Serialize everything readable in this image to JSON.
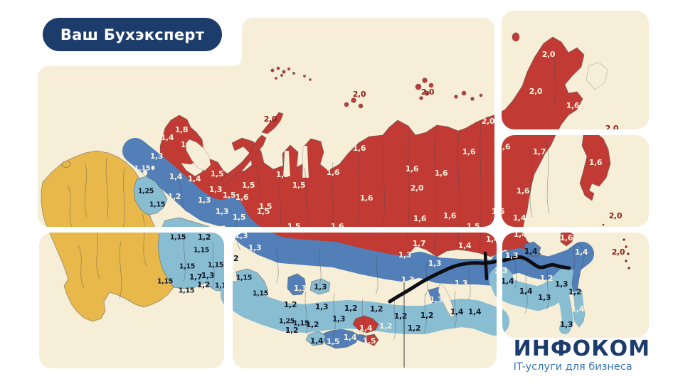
{
  "badge": {
    "label": "Ваш Бухэксперт"
  },
  "logo": {
    "title": "ИНФОКОМ",
    "subtitle": "IT-услуги для бизнеса"
  },
  "colors": {
    "bg": "#ffffff",
    "beige": "#f6eed6",
    "yellow": "#e8b84b",
    "lblue": "#89bdd2",
    "mblue": "#527fb8",
    "red": "#c23a34",
    "ink-light": "#f7efdc",
    "ink-dark": "#141c2b",
    "ink-red": "#8e211d",
    "navy": "#1c3c6b",
    "logo-blue": "#3577b5",
    "line": "#0d0d12"
  },
  "map": {
    "description": "Map of Russia with regional (district) salary coefficients by zone",
    "labels": [
      [
        380,
        167,
        "2,0",
        "r"
      ],
      [
        505,
        132,
        "2,0",
        "r"
      ],
      [
        601,
        129,
        "2,0",
        "r"
      ],
      [
        860,
        180,
        "2,0",
        "r"
      ],
      [
        865,
        303,
        "2,0",
        "r"
      ],
      [
        869,
        354,
        "2,0",
        "r"
      ],
      [
        255,
        182,
        "1,8",
        "w"
      ],
      [
        235,
        193,
        "1,4",
        "w"
      ],
      [
        263,
        203,
        "1,7",
        "w"
      ],
      [
        220,
        219,
        "1,3",
        "w"
      ],
      [
        200,
        236,
        "1,15",
        "w"
      ],
      [
        247,
        248,
        "1,4",
        "w"
      ],
      [
        273,
        251,
        "1,4",
        "w"
      ],
      [
        305,
        244,
        "1,5",
        "w"
      ],
      [
        245,
        276,
        "1,2",
        "w"
      ],
      [
        287,
        281,
        "1,3",
        "w"
      ],
      [
        303,
        266,
        "1,3",
        "w"
      ],
      [
        322,
        274,
        "1,5",
        "w"
      ],
      [
        340,
        277,
        "1,6",
        "w"
      ],
      [
        349,
        260,
        "1,5",
        "w"
      ],
      [
        370,
        297,
        "1,5",
        "w"
      ],
      [
        312,
        297,
        "1,3",
        "w"
      ],
      [
        336,
        305,
        "1,5",
        "w"
      ],
      [
        339,
        331,
        "1,3",
        "w"
      ],
      [
        358,
        348,
        "1,3",
        "w"
      ],
      [
        397,
        245,
        "1,5",
        "w"
      ],
      [
        420,
        260,
        "1,5",
        "w"
      ],
      [
        373,
        290,
        "1,5",
        "w"
      ],
      [
        413,
        318,
        "1,5",
        "w"
      ],
      [
        468,
        242,
        "1,6",
        "w"
      ],
      [
        474,
        318,
        "1,6",
        "w"
      ],
      [
        505,
        208,
        "1,6",
        "w"
      ],
      [
        515,
        278,
        "1,6",
        "w"
      ],
      [
        579,
        237,
        "1,6",
        "w"
      ],
      [
        586,
        264,
        "2,0",
        "w"
      ],
      [
        590,
        307,
        "1,6",
        "w"
      ],
      [
        620,
        243,
        "1,6",
        "w"
      ],
      [
        632,
        303,
        "1,6",
        "w"
      ],
      [
        659,
        213,
        "1,6",
        "w"
      ],
      [
        665,
        318,
        "1,5",
        "w"
      ],
      [
        686,
        170,
        "2,0",
        "w"
      ],
      [
        589,
        342,
        "1,7",
        "w"
      ],
      [
        569,
        358,
        "1,3",
        "w"
      ],
      [
        611,
        370,
        "1,3",
        "w"
      ],
      [
        573,
        393,
        "1,3",
        "w"
      ],
      [
        648,
        398,
        "1,3",
        "w"
      ],
      [
        613,
        421,
        "1,3",
        "w"
      ],
      [
        422,
        405,
        "1,3",
        "w"
      ],
      [
        653,
        345,
        "1,4",
        "w"
      ],
      [
        692,
        336,
        "1,4",
        "w"
      ],
      [
        708,
        206,
        "1,6",
        "w"
      ],
      [
        758,
        213,
        "1,7",
        "w"
      ],
      [
        771,
        76,
        "2,0",
        "w"
      ],
      [
        753,
        128,
        "2,0",
        "w"
      ],
      [
        805,
        148,
        "1,6",
        "w"
      ],
      [
        837,
        228,
        "1,6",
        "w"
      ],
      [
        735,
        268,
        "1,6",
        "w"
      ],
      [
        730,
        306,
        "1,4",
        "w"
      ],
      [
        700,
        297,
        "1,5",
        "w"
      ],
      [
        731,
        329,
        "1,4",
        "w"
      ],
      [
        719,
        359,
        "1,3",
        "w"
      ],
      [
        704,
        380,
        "1,3",
        "w"
      ],
      [
        768,
        391,
        "1,2",
        "w"
      ],
      [
        796,
        334,
        "1,6",
        "w"
      ],
      [
        817,
        354,
        "1,4",
        "w"
      ],
      [
        812,
        434,
        "1,4",
        "w"
      ],
      [
        468,
        480,
        "1,5",
        "w"
      ],
      [
        492,
        474,
        "1,4",
        "w"
      ],
      [
        542,
        458,
        "1,2",
        "w"
      ],
      [
        514,
        461,
        "1,4",
        "w"
      ],
      [
        519,
        479,
        "1,5",
        "w"
      ],
      [
        205,
        268,
        "1,25",
        "d"
      ],
      [
        221,
        287,
        "1,15",
        "d"
      ],
      [
        250,
        333,
        "1,15",
        "d"
      ],
      [
        287,
        333,
        "1,2",
        "d"
      ],
      [
        283,
        351,
        "1,15",
        "d"
      ],
      [
        263,
        374,
        "1,15",
        "d"
      ],
      [
        303,
        372,
        "1,15",
        "d"
      ],
      [
        275,
        389,
        "1,7",
        "d"
      ],
      [
        292,
        387,
        "1,3",
        "d"
      ],
      [
        286,
        400,
        "1,2",
        "d"
      ],
      [
        232,
        395,
        "1,15",
        "d"
      ],
      [
        262,
        408,
        "1,15",
        "d"
      ],
      [
        313,
        401,
        "1,15",
        "d"
      ],
      [
        343,
        390,
        "1,15",
        "d"
      ],
      [
        366,
        412,
        "1,15",
        "d"
      ],
      [
        326,
        363,
        "1,2",
        "d"
      ],
      [
        408,
        428,
        "1,2",
        "d"
      ],
      [
        450,
        403,
        "1,3",
        "d"
      ],
      [
        452,
        431,
        "1,3",
        "d"
      ],
      [
        493,
        433,
        "1,2",
        "d"
      ],
      [
        529,
        434,
        "1,2",
        "d"
      ],
      [
        403,
        451,
        "1,25",
        "d"
      ],
      [
        423,
        454,
        "1,15",
        "d"
      ],
      [
        439,
        456,
        "1,2",
        "d"
      ],
      [
        476,
        448,
        "1,3",
        "d"
      ],
      [
        410,
        464,
        "1,2",
        "d"
      ],
      [
        445,
        479,
        "1,4",
        "d"
      ],
      [
        563,
        444,
        "1,2",
        "d"
      ],
      [
        582,
        461,
        "1,2",
        "d"
      ],
      [
        600,
        443,
        "1,2",
        "d"
      ],
      [
        642,
        438,
        "1,4",
        "d"
      ],
      [
        667,
        438,
        "1,4",
        "d"
      ],
      [
        746,
        353,
        "1,4",
        "d"
      ],
      [
        713,
        395,
        "1,4",
        "d"
      ],
      [
        739,
        409,
        "1,4",
        "d"
      ],
      [
        765,
        418,
        "1,3",
        "d"
      ],
      [
        789,
        399,
        "1,3",
        "d"
      ],
      [
        808,
        410,
        "1,2",
        "d"
      ],
      [
        796,
        456,
        "1,3",
        "d"
      ]
    ]
  }
}
